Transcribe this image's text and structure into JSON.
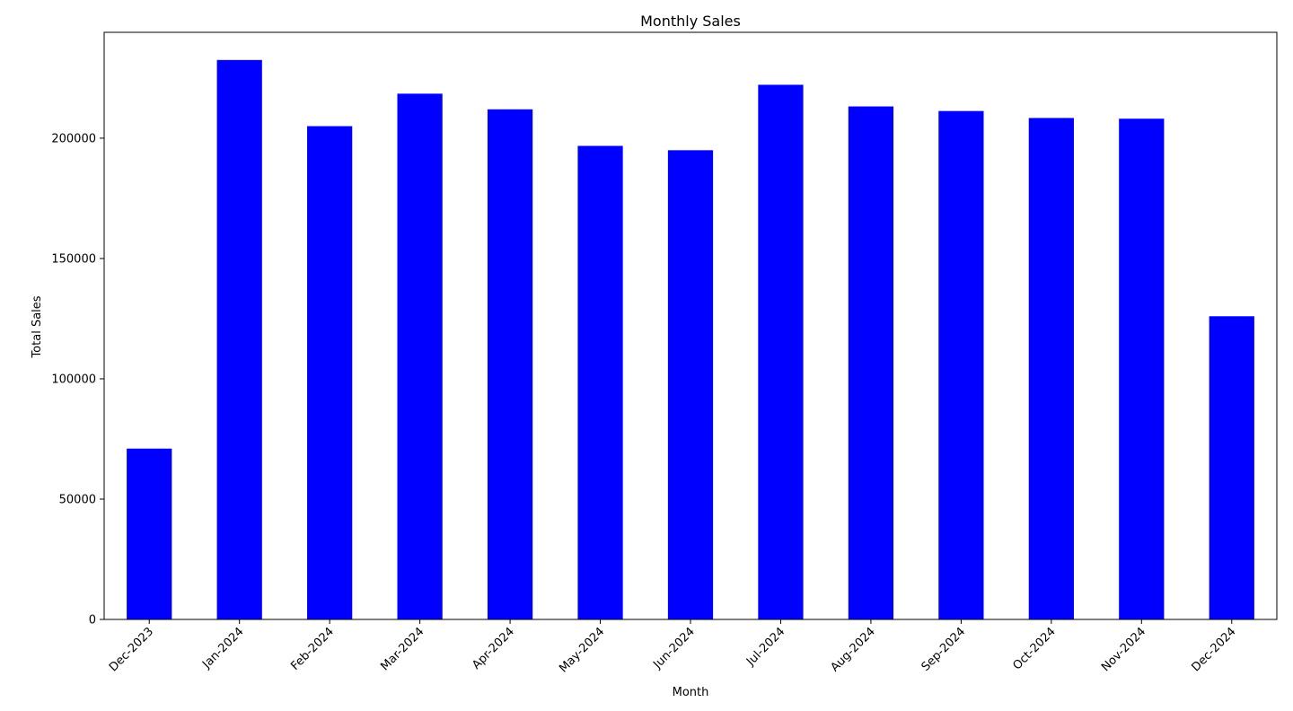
{
  "chart_data": {
    "type": "bar",
    "title": "Monthly Sales",
    "xlabel": "Month",
    "ylabel": "Total Sales",
    "categories": [
      "Dec-2023",
      "Jan-2024",
      "Feb-2024",
      "Mar-2024",
      "Apr-2024",
      "May-2024",
      "Jun-2024",
      "Jul-2024",
      "Aug-2024",
      "Sep-2024",
      "Oct-2024",
      "Nov-2024",
      "Dec-2024"
    ],
    "values": [
      71000,
      232500,
      205000,
      218500,
      212000,
      196800,
      195000,
      222200,
      213200,
      211300,
      208400,
      208100,
      126000
    ],
    "ylim": [
      0,
      244000
    ],
    "yticks": [
      0,
      50000,
      100000,
      150000,
      200000
    ],
    "ytick_labels": [
      "0",
      "50000",
      "100000",
      "150000",
      "200000"
    ],
    "bar_color": "#0000ff",
    "grid": false,
    "xtick_rotation_deg": 45
  }
}
